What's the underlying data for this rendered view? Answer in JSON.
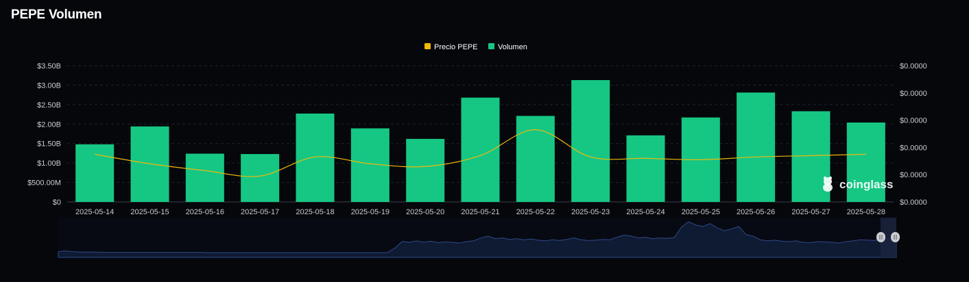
{
  "page_title": "PEPE Volumen",
  "watermark": "coinglass",
  "colors": {
    "background": "#05070b",
    "volume": "#16c784",
    "price": "#f0b90b",
    "grid": "#1f242c",
    "overview_fill": "#0f1a33",
    "overview_line": "#2f4a8a"
  },
  "legend": {
    "price_label": "Precio PEPE",
    "volume_label": "Volumen"
  },
  "chart_data": {
    "type": "bar",
    "title": "PEPE Volumen",
    "categories": [
      "2025-05-14",
      "2025-05-15",
      "2025-05-16",
      "2025-05-17",
      "2025-05-18",
      "2025-05-19",
      "2025-05-20",
      "2025-05-21",
      "2025-05-22",
      "2025-05-23",
      "2025-05-24",
      "2025-05-25",
      "2025-05-26",
      "2025-05-27",
      "2025-05-28"
    ],
    "series": [
      {
        "name": "Volumen",
        "type": "bar",
        "axis": "left",
        "unit": "USD",
        "values": [
          1480000000.0,
          1940000000.0,
          1240000000.0,
          1230000000.0,
          2270000000.0,
          1890000000.0,
          1620000000.0,
          2680000000.0,
          2210000000.0,
          3130000000.0,
          1710000000.0,
          2170000000.0,
          2810000000.0,
          2330000000.0,
          2040000000.0
        ]
      },
      {
        "name": "Precio PEPE",
        "type": "line",
        "axis": "right",
        "unit": "USD",
        "values": [
          1.35e-05,
          1.28e-05,
          1.23e-05,
          1.19e-05,
          1.33e-05,
          1.28e-05,
          1.26e-05,
          1.34e-05,
          1.53e-05,
          1.33e-05,
          1.32e-05,
          1.31e-05,
          1.33e-05,
          1.34e-05,
          1.35e-05
        ]
      }
    ],
    "y_left": {
      "ylim": [
        0,
        3500000000
      ],
      "ticks": [
        "$0",
        "$500.00M",
        "$1.00B",
        "$1.50B",
        "$2.00B",
        "$2.50B",
        "$3.00B",
        "$3.50B"
      ]
    },
    "y_right": {
      "ylim": [
        1e-05,
        2e-05
      ],
      "ticks": [
        "$0.0000",
        "$0.0000",
        "$0.0000",
        "$0.0000",
        "$0.0000",
        "$0.0000"
      ]
    },
    "grid": true,
    "legend_position": "top-center"
  },
  "overview": {
    "values": [
      0.12,
      0.14,
      0.12,
      0.11,
      0.11,
      0.11,
      0.1,
      0.1,
      0.1,
      0.1,
      0.1,
      0.1,
      0.1,
      0.1,
      0.1,
      0.1,
      0.1,
      0.1,
      0.1,
      0.1,
      0.1,
      0.09,
      0.09,
      0.09,
      0.09,
      0.09,
      0.09,
      0.09,
      0.09,
      0.09,
      0.09,
      0.09,
      0.09,
      0.09,
      0.09,
      0.09,
      0.09,
      0.09,
      0.09,
      0.09,
      0.09,
      0.09,
      0.09,
      0.09,
      0.09,
      0.09,
      0.1,
      0.22,
      0.4,
      0.38,
      0.42,
      0.38,
      0.41,
      0.37,
      0.39,
      0.38,
      0.36,
      0.4,
      0.42,
      0.5,
      0.55,
      0.48,
      0.5,
      0.46,
      0.48,
      0.45,
      0.47,
      0.44,
      0.42,
      0.45,
      0.43,
      0.46,
      0.5,
      0.45,
      0.43,
      0.44,
      0.46,
      0.45,
      0.52,
      0.58,
      0.55,
      0.5,
      0.52,
      0.48,
      0.5,
      0.49,
      0.51,
      0.8,
      0.95,
      0.86,
      0.82,
      0.9,
      0.78,
      0.7,
      0.75,
      0.82,
      0.6,
      0.55,
      0.45,
      0.42,
      0.44,
      0.41,
      0.4,
      0.42,
      0.38,
      0.37,
      0.4,
      0.39,
      0.38,
      0.36,
      0.4,
      0.42,
      0.45,
      0.44,
      0.43,
      0.5,
      0.48,
      0.52
    ]
  }
}
